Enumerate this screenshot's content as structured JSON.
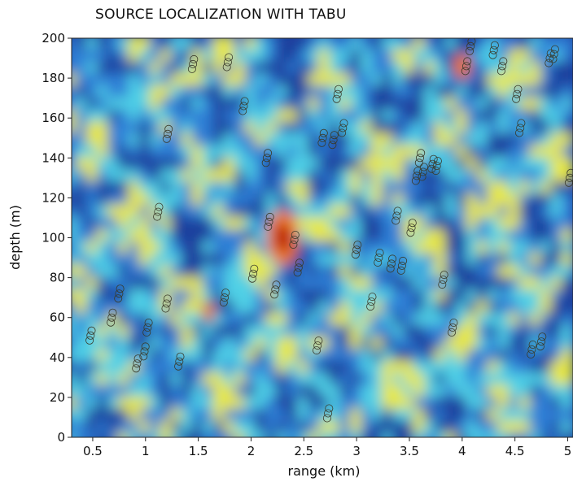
{
  "chart_data": {
    "type": "heatmap",
    "title": "SOURCE LOCALIZATION WITH TABU",
    "xlabel": "range (km)",
    "ylabel": "depth (m)",
    "xlim": [
      0.3,
      5.05
    ],
    "ylim": [
      0,
      200
    ],
    "x_ticks": [
      "0.5",
      "1",
      "1.5",
      "2",
      "2.5",
      "3",
      "3.5",
      "4",
      "4.5",
      "5"
    ],
    "x_tick_values": [
      0.5,
      1,
      1.5,
      2,
      2.5,
      3,
      3.5,
      4,
      4.5,
      5
    ],
    "y_ticks": [
      "0",
      "20",
      "40",
      "60",
      "80",
      "100",
      "120",
      "140",
      "160",
      "180",
      "200"
    ],
    "y_tick_values": [
      0,
      20,
      40,
      60,
      80,
      100,
      120,
      140,
      160,
      180,
      200
    ],
    "colormap": [
      "#1e3f9e",
      "#2f7fd6",
      "#4fd0e6",
      "#e8e83c",
      "#f07c1c",
      "#b8120e"
    ],
    "peak": {
      "range": 2.3,
      "depth": 100
    },
    "series": [
      {
        "marker": "circle",
        "x": [
          0.48,
          0.68,
          0.75,
          0.92,
          0.99,
          1.02,
          1.12,
          1.2,
          1.32,
          1.45,
          1.75,
          1.78,
          1.93,
          2.15,
          2.17,
          2.23,
          2.41,
          2.45,
          2.63,
          2.68,
          2.73,
          2.78,
          2.82,
          2.87,
          3.0,
          3.14,
          3.21,
          3.33,
          3.38,
          3.43,
          3.52,
          3.57,
          3.6,
          3.63,
          3.72,
          3.76,
          3.82,
          3.91,
          4.04,
          4.08,
          4.3,
          4.38,
          4.52,
          4.55,
          4.66,
          4.75,
          4.83,
          4.87,
          5.02,
          1.21,
          2.02
        ],
        "y": [
          51,
          60,
          72,
          37,
          43,
          55,
          113,
          67,
          38,
          187,
          70,
          188,
          166,
          140,
          108,
          74,
          99,
          85,
          46,
          150,
          12,
          149,
          172,
          155,
          94,
          68,
          90,
          87,
          111,
          86,
          105,
          131,
          140,
          133,
          137,
          136,
          79,
          55,
          186,
          196,
          194,
          186,
          172,
          155,
          44,
          48,
          190,
          192,
          130,
          152,
          82
        ]
      }
    ]
  }
}
